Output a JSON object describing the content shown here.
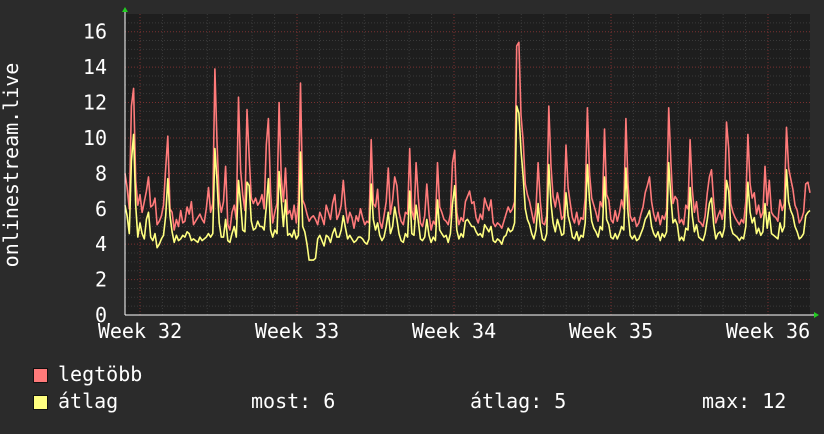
{
  "chart_data": {
    "type": "line",
    "ylabel": "onlinestream.live",
    "ylim": [
      0,
      17
    ],
    "yticks": [
      0,
      2,
      4,
      6,
      8,
      10,
      12,
      14,
      16
    ],
    "xticks": [
      "Week 32",
      "Week 33",
      "Week 34",
      "Week 35",
      "Week 36"
    ],
    "grid": true,
    "legend_position": "bottom-left",
    "series": [
      {
        "name": "legtöbb",
        "color": "#ff7a7a",
        "values": [
          8.0,
          7.2,
          6.0,
          11.8,
          12.8,
          7.6,
          6.2,
          6.8,
          5.8,
          6.4,
          7.0,
          7.8,
          6.1,
          6.2,
          6.6,
          5.1,
          5.3,
          5.6,
          6.2,
          8.3,
          10.1,
          6.0,
          5.8,
          4.8,
          5.4,
          5.0,
          5.9,
          5.2,
          5.3,
          6.1,
          5.7,
          6.4,
          5.1,
          5.3,
          5.5,
          5.7,
          5.4,
          5.2,
          6.0,
          7.2,
          5.8,
          6.3,
          13.9,
          9.8,
          6.5,
          5.8,
          6.4,
          8.4,
          5.1,
          4.8,
          5.8,
          6.2,
          5.4,
          12.3,
          8.2,
          6.8,
          5.9,
          11.6,
          8.9,
          6.6,
          6.3,
          6.6,
          6.2,
          6.4,
          6.8,
          6.0,
          9.6,
          11.1,
          6.9,
          5.2,
          5.8,
          6.3,
          12.0,
          7.7,
          6.4,
          8.3,
          5.7,
          5.9,
          5.4,
          6.2,
          5.2,
          6.4,
          13.1,
          6.5,
          6.2,
          5.7,
          5.3,
          5.5,
          5.6,
          5.4,
          5.1,
          5.8,
          5.5,
          5.1,
          6.2,
          5.8,
          5.4,
          6.3,
          6.8,
          5.4,
          5.7,
          6.2,
          7.6,
          6.1,
          5.2,
          5.8,
          5.5,
          4.9,
          5.6,
          5.3,
          6.0,
          5.5,
          5.1,
          5.3,
          5.2,
          9.9,
          6.3,
          6.1,
          7.1,
          5.3,
          4.9,
          5.6,
          6.4,
          8.3,
          5.7,
          6.5,
          7.8,
          7.3,
          5.8,
          5.3,
          5.1,
          5.8,
          5.7,
          9.4,
          5.9,
          5.4,
          8.6,
          6.6,
          5.2,
          5.0,
          5.6,
          7.4,
          5.7,
          4.8,
          5.3,
          5.1,
          8.6,
          6.1,
          5.8,
          5.4,
          5.3,
          5.1,
          5.7,
          8.6,
          9.3,
          5.8,
          5.1,
          5.5,
          5.3,
          6.4,
          6.7,
          7.0,
          6.3,
          6.4,
          5.5,
          5.2,
          5.7,
          5.4,
          6.6,
          6.2,
          5.9,
          6.5,
          5.2,
          5.0,
          5.2,
          5.1,
          4.9,
          5.3,
          5.7,
          6.1,
          5.8,
          6.0,
          6.4,
          15.2,
          15.4,
          11.3,
          9.8,
          7.4,
          6.8,
          6.4,
          5.8,
          5.2,
          6.0,
          8.6,
          6.4,
          5.2,
          5.1,
          5.6,
          11.8,
          8.4,
          6.7,
          6.1,
          6.9,
          6.3,
          5.4,
          5.6,
          9.6,
          7.2,
          6.3,
          5.5,
          5.2,
          5.8,
          5.1,
          5.5,
          5.4,
          6.6,
          11.7,
          8.0,
          6.6,
          6.2,
          5.8,
          5.3,
          6.4,
          6.1,
          10.5,
          6.8,
          6.5,
          5.4,
          5.2,
          5.9,
          5.3,
          5.8,
          6.5,
          6.0,
          11.1,
          7.4,
          5.6,
          5.3,
          5.5,
          5.0,
          5.2,
          5.7,
          6.1,
          6.9,
          7.3,
          7.8,
          6.4,
          5.7,
          5.3,
          5.8,
          5.1,
          5.6,
          5.4,
          5.9,
          11.7,
          8.6,
          6.3,
          6.7,
          6.5,
          5.2,
          5.4,
          5.1,
          6.2,
          6.0,
          9.9,
          7.1,
          5.8,
          6.4,
          5.3,
          5.2,
          5.0,
          5.6,
          6.9,
          7.8,
          8.2,
          6.4,
          5.2,
          5.6,
          5.9,
          5.4,
          6.1,
          10.9,
          9.4,
          6.3,
          5.8,
          5.5,
          5.3,
          5.1,
          5.4,
          5.2,
          6.4,
          10.2,
          7.4,
          6.6,
          6.9,
          5.7,
          6.2,
          5.5,
          5.8,
          8.4,
          6.2,
          7.6,
          5.8,
          5.6,
          5.5,
          5.3,
          6.5,
          5.9,
          6.3,
          10.6,
          8.3,
          7.7,
          7.1,
          6.2,
          5.9,
          5.2,
          5.4,
          5.8,
          7.4,
          7.5,
          6.9
        ]
      },
      {
        "name": "átlag",
        "color": "#ffff80",
        "values": [
          6.2,
          5.6,
          4.6,
          8.7,
          10.2,
          6.2,
          4.4,
          5.2,
          4.6,
          4.3,
          5.4,
          5.8,
          4.4,
          4.2,
          4.6,
          3.8,
          4.0,
          4.3,
          4.5,
          5.6,
          7.7,
          5.6,
          4.7,
          4.1,
          4.5,
          4.2,
          4.3,
          4.5,
          4.4,
          4.7,
          4.6,
          4.2,
          4.3,
          4.2,
          4.1,
          4.4,
          4.2,
          4.3,
          4.4,
          4.6,
          4.4,
          4.6,
          9.4,
          7.6,
          5.2,
          4.4,
          4.4,
          5.4,
          4.2,
          4.1,
          4.6,
          5.0,
          4.4,
          7.6,
          6.3,
          4.8,
          4.7,
          7.5,
          7.3,
          5.3,
          4.8,
          4.9,
          5.3,
          5.0,
          5.0,
          4.8,
          6.1,
          7.7,
          4.8,
          4.4,
          4.8,
          4.6,
          8.1,
          6.5,
          5.0,
          6.5,
          4.5,
          4.6,
          4.4,
          4.8,
          4.3,
          4.5,
          9.2,
          5.0,
          4.7,
          4.0,
          3.1,
          3.1,
          3.1,
          3.2,
          4.3,
          4.5,
          4.2,
          3.9,
          4.5,
          4.4,
          4.1,
          4.6,
          4.9,
          4.4,
          4.4,
          4.8,
          5.6,
          4.9,
          4.3,
          4.5,
          4.3,
          4.1,
          4.2,
          4.4,
          4.4,
          4.3,
          4.1,
          4.0,
          4.3,
          7.4,
          5.4,
          4.8,
          5.2,
          4.5,
          4.2,
          4.4,
          5.0,
          5.8,
          4.6,
          5.0,
          6.1,
          5.4,
          4.6,
          4.2,
          4.1,
          4.6,
          4.4,
          7.0,
          4.6,
          4.5,
          6.2,
          5.3,
          4.3,
          4.2,
          4.4,
          5.4,
          4.5,
          4.1,
          4.4,
          4.2,
          6.5,
          4.8,
          4.6,
          4.4,
          4.5,
          4.1,
          4.6,
          6.3,
          7.3,
          4.8,
          4.3,
          4.6,
          4.4,
          5.3,
          5.4,
          5.2,
          5.0,
          5.0,
          4.7,
          4.5,
          4.6,
          4.4,
          5.1,
          4.9,
          4.7,
          5.0,
          4.2,
          4.1,
          4.3,
          4.2,
          4.0,
          4.4,
          4.5,
          4.9,
          4.7,
          4.8,
          5.2,
          11.8,
          11.4,
          9.3,
          7.8,
          6.0,
          5.4,
          5.1,
          4.6,
          4.3,
          4.8,
          6.3,
          5.0,
          4.3,
          4.2,
          4.6,
          8.5,
          6.3,
          5.2,
          4.7,
          5.4,
          5.0,
          4.5,
          4.6,
          6.9,
          5.6,
          5.1,
          4.4,
          4.3,
          4.7,
          4.2,
          4.5,
          4.4,
          5.2,
          8.5,
          6.5,
          5.3,
          4.9,
          4.7,
          4.4,
          5.0,
          4.8,
          7.8,
          5.4,
          5.1,
          4.4,
          4.3,
          4.6,
          4.3,
          4.6,
          5.0,
          4.8,
          8.3,
          5.8,
          4.5,
          4.3,
          4.5,
          4.2,
          4.3,
          4.6,
          4.9,
          5.4,
          5.6,
          5.9,
          5.0,
          4.6,
          4.4,
          4.7,
          4.2,
          4.6,
          4.4,
          4.7,
          8.6,
          6.6,
          5.2,
          5.4,
          5.1,
          4.2,
          4.4,
          4.2,
          4.9,
          4.8,
          7.2,
          5.6,
          4.7,
          5.1,
          4.4,
          4.3,
          4.2,
          4.6,
          5.4,
          6.3,
          6.6,
          5.1,
          4.3,
          4.6,
          4.7,
          4.4,
          4.9,
          7.6,
          7.0,
          5.0,
          4.6,
          4.5,
          4.4,
          4.2,
          4.4,
          4.3,
          5.0,
          7.5,
          5.8,
          5.2,
          5.5,
          4.6,
          4.9,
          4.5,
          4.7,
          6.3,
          4.9,
          5.8,
          4.6,
          4.5,
          4.4,
          4.3,
          5.2,
          4.7,
          5.0,
          8.2,
          6.4,
          5.9,
          5.6,
          5.0,
          4.7,
          4.3,
          4.4,
          4.6,
          5.6,
          5.8,
          5.9
        ]
      }
    ]
  },
  "legend": {
    "max_label": "legtöbb",
    "avg_label": "átlag",
    "max_color": "#ff7a7a",
    "avg_color": "#ffff80"
  },
  "stats": {
    "current": "most: 6",
    "average": "átlag: 5",
    "maximum": "max: 12"
  }
}
